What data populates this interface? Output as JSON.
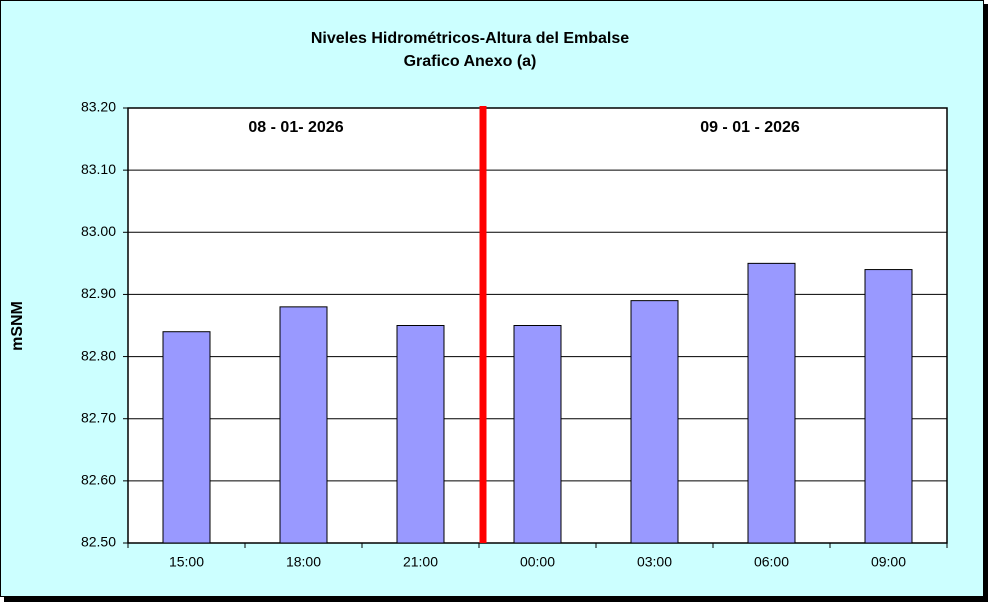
{
  "chart_data": {
    "type": "bar",
    "title": "Niveles Hidrométricos-Altura del Embalse",
    "subtitle": "Grafico Anexo (a)",
    "y_label": "mSNM",
    "annotations": [
      "08 - 01- 2026",
      "09 - 01 - 2026"
    ],
    "categories": [
      "15:00",
      "18:00",
      "21:00",
      "00:00",
      "03:00",
      "06:00",
      "09:00"
    ],
    "values": [
      82.84,
      82.88,
      82.85,
      82.85,
      82.89,
      82.95,
      82.94
    ],
    "color": "#9999ff",
    "ylim": [
      82.5,
      83.2
    ],
    "yticks": [
      {
        "value": 82.5,
        "label": "82.50"
      },
      {
        "value": 82.6,
        "label": "82.60"
      },
      {
        "value": 82.7,
        "label": "82.70"
      },
      {
        "value": 82.8,
        "label": "82.80"
      },
      {
        "value": 82.9,
        "label": "82.90"
      },
      {
        "value": 83.0,
        "label": "83.00"
      },
      {
        "value": 83.1,
        "label": "83.10"
      },
      {
        "value": 83.2,
        "label": "83.20"
      }
    ],
    "grid": true
  }
}
